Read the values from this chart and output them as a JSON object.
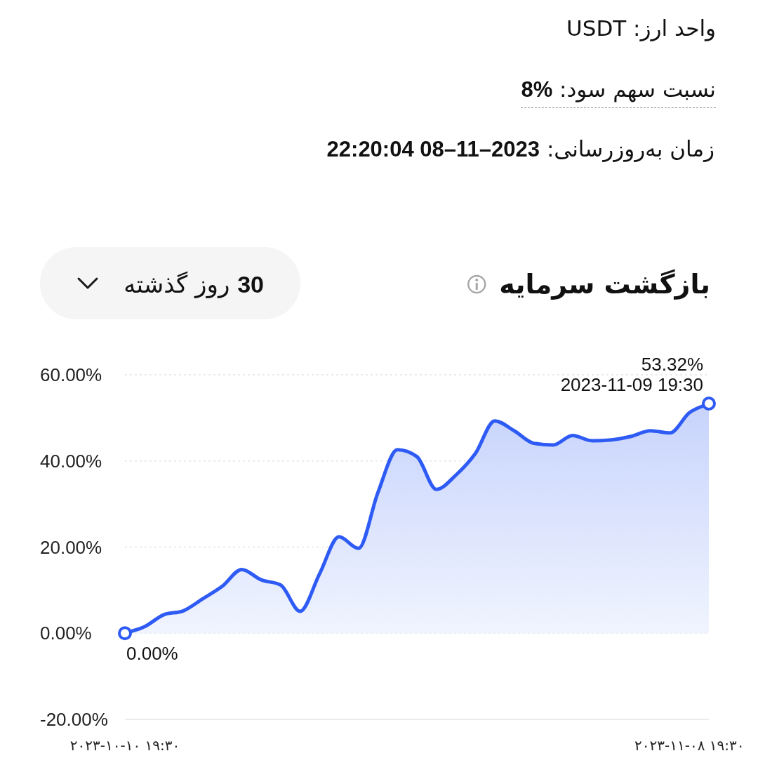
{
  "chart_data": {
    "type": "area",
    "title": "بازگشت سرمایه",
    "x": [
      "2023-10-10T19:30",
      "2023-10-11T19:30",
      "2023-10-12T19:30",
      "2023-10-13T19:30",
      "2023-10-14T19:30",
      "2023-10-15T19:30",
      "2023-10-16T19:30",
      "2023-10-17T19:30",
      "2023-10-18T19:30",
      "2023-10-19T19:30",
      "2023-10-20T19:30",
      "2023-10-21T19:30",
      "2023-10-22T19:30",
      "2023-10-23T19:30",
      "2023-10-24T19:30",
      "2023-10-25T19:30",
      "2023-10-26T19:30",
      "2023-10-27T19:30",
      "2023-10-28T19:30",
      "2023-10-29T19:30",
      "2023-10-30T19:30",
      "2023-10-31T19:30",
      "2023-11-01T19:30",
      "2023-11-02T19:30",
      "2023-11-03T19:30",
      "2023-11-04T19:30",
      "2023-11-05T19:30",
      "2023-11-06T19:30",
      "2023-11-07T19:30",
      "2023-11-08T19:30",
      "2023-11-09T19:30"
    ],
    "values": [
      0,
      1.5,
      4.3,
      5.2,
      8.0,
      10.9,
      14.8,
      12.4,
      11.2,
      5.1,
      13.8,
      22.4,
      19.7,
      32.7,
      42.6,
      41.0,
      33.4,
      36.7,
      41.7,
      49.3,
      47.0,
      44.1,
      43.7,
      45.9,
      44.7,
      44.9,
      45.7,
      47.0,
      46.5,
      51.2,
      53.32
    ],
    "color": "#2f5bf5",
    "xlim": [
      "2023-10-10T19:30",
      "2023-11-09T19:30"
    ],
    "xticks": [
      {
        "value": "2023-10-10T19:30",
        "label": "۲۰۲۳-۱۰-۱۰ ۱۹:۳۰"
      },
      {
        "value": "2023-11-08T19:30",
        "label": "۲۰۲۳-۱۱-۰۸ ۱۹:۳۰"
      }
    ],
    "ylim": [
      -20,
      60
    ],
    "yticks": [
      {
        "value": -20,
        "label": "-20.00%"
      },
      {
        "value": 0,
        "label": "0.00%"
      },
      {
        "value": 20,
        "label": "20.00%"
      },
      {
        "value": 40,
        "label": "40.00%"
      },
      {
        "value": 60,
        "label": "60.00%"
      }
    ],
    "grid": "y",
    "annotations": [
      "واحد ارز: USDT",
      "نسبت سهم سود: **8%**",
      "زمان به‌روزرسانی: **2023–11–08 22:20:04**",
      "**30** روز گذشته",
      {
        "text": "0.00%",
        "x": "2023-10-10T19:30",
        "y": 0
      },
      {
        "text": "53.32%",
        "x": "2023-11-09T19:30",
        "y": 53.32
      },
      {
        "text": "2023-11-09 19:30",
        "x": "2023-11-09T19:30",
        "y": 53.32
      }
    ]
  }
}
